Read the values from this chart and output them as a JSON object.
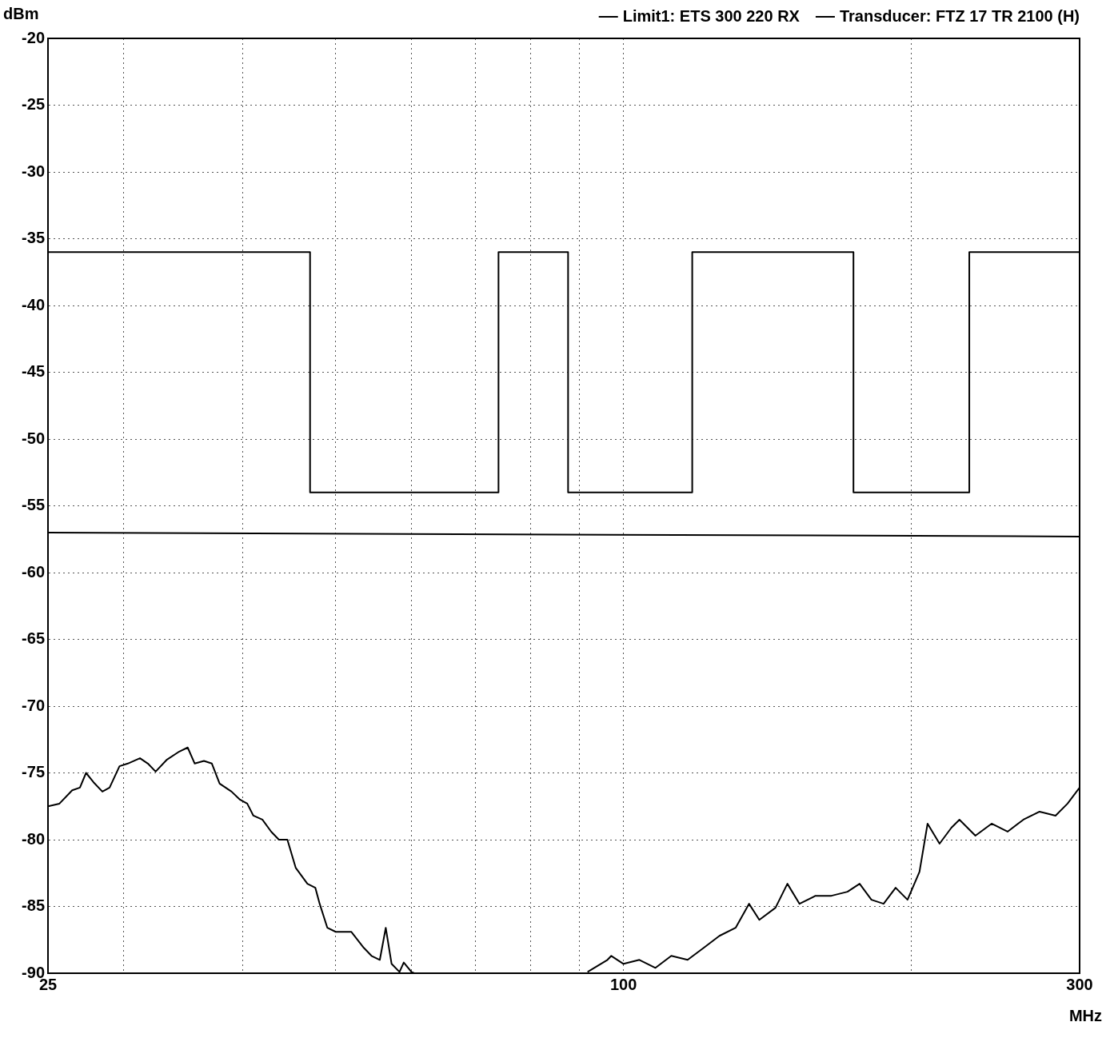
{
  "chart_data": {
    "type": "line",
    "xlabel": "MHz",
    "ylabel": "dBm",
    "log": "x",
    "grid": true,
    "legend": "top right",
    "marker": "none",
    "line_style": "solid",
    "xlim": [
      25,
      300
    ],
    "xticks": [
      25,
      {
        "value": 30,
        "label": null
      },
      {
        "value": 40,
        "label": null
      },
      {
        "value": 50,
        "label": null
      },
      {
        "value": 60,
        "label": null
      },
      {
        "value": 70,
        "label": null
      },
      {
        "value": 80,
        "label": null
      },
      {
        "value": 90,
        "label": null
      },
      100,
      {
        "value": 200,
        "label": null
      },
      300
    ],
    "ylim": [
      -90,
      -20
    ],
    "yticks": [
      -90,
      -85,
      -80,
      -75,
      -70,
      -65,
      -60,
      -55,
      -50,
      -45,
      -40,
      -35,
      -30,
      -25,
      -20
    ],
    "series": [
      {
        "name": "Limit1: ETS 300 220 RX",
        "type": "step",
        "color": "#000000",
        "x": [
          25,
          47,
          74,
          87.5,
          118,
          174,
          230,
          300
        ],
        "values": [
          -36,
          -54,
          -36,
          -54,
          -36,
          -54,
          -36,
          -36
        ]
      },
      {
        "name": "Transducer: FTZ 17 TR 2100 (H)",
        "type": "line",
        "color": "#000000",
        "x": [
          25,
          300
        ],
        "values": [
          -57,
          -57.3
        ]
      },
      {
        "color": "#000000",
        "x": [
          25,
          25.7,
          26.5,
          27.0,
          27.4,
          27.9,
          28.5,
          29.0,
          29.7,
          30.3,
          31.2,
          31.8,
          32.4,
          33.3,
          34.3,
          35.0,
          35.6,
          36.4,
          37.1,
          37.8,
          38.9,
          39.7,
          40.4,
          41.0,
          41.9,
          42.8,
          43.6,
          44.5,
          45.4,
          46.7,
          47.6,
          48.1,
          49.0,
          50.0,
          51.9,
          53.5,
          54.5,
          55.6,
          56.4,
          57.2,
          58.3,
          58.9,
          60.0,
          60.4,
          75,
          91.7,
          96.2,
          97.1,
          100,
          103.9,
          108.0,
          112.2,
          116.7,
          121.3,
          126.0,
          131.0,
          135.3,
          138.7,
          144.2,
          148.4,
          152.8,
          158.8,
          165.0,
          171.5,
          176.6,
          181.7,
          187.1,
          192.6,
          198.2,
          204.0,
          208.0,
          214.1,
          220.3,
          224.6,
          233.4,
          242.7,
          252.2,
          262.0,
          272.4,
          283.1,
          291.4,
          300
        ],
        "values": [
          -77.5,
          -77.3,
          -76.3,
          -76.1,
          -75.0,
          -75.7,
          -76.4,
          -76.1,
          -74.5,
          -74.3,
          -73.9,
          -74.3,
          -74.9,
          -74.0,
          -73.4,
          -73.1,
          -74.3,
          -74.1,
          -74.3,
          -75.8,
          -76.4,
          -77.0,
          -77.3,
          -78.2,
          -78.5,
          -79.4,
          -80.0,
          -80.0,
          -82.1,
          -83.3,
          -83.6,
          -84.8,
          -86.6,
          -86.9,
          -86.9,
          -88.1,
          -88.7,
          -89.0,
          -86.6,
          -89.3,
          -89.9,
          -89.2,
          -89.9,
          -90,
          null,
          -89.9,
          -89.0,
          -88.7,
          -89.3,
          -89.0,
          -89.6,
          -88.7,
          -89.0,
          -88.1,
          -87.2,
          -86.6,
          -84.8,
          -86.0,
          -85.1,
          -83.3,
          -84.8,
          -84.2,
          -84.2,
          -83.9,
          -83.3,
          -84.5,
          -84.8,
          -83.6,
          -84.5,
          -82.4,
          -78.8,
          -80.3,
          -79.1,
          -78.5,
          -79.7,
          -78.8,
          -79.4,
          -78.5,
          -77.9,
          -78.2,
          -77.3,
          -76.1
        ]
      }
    ]
  }
}
